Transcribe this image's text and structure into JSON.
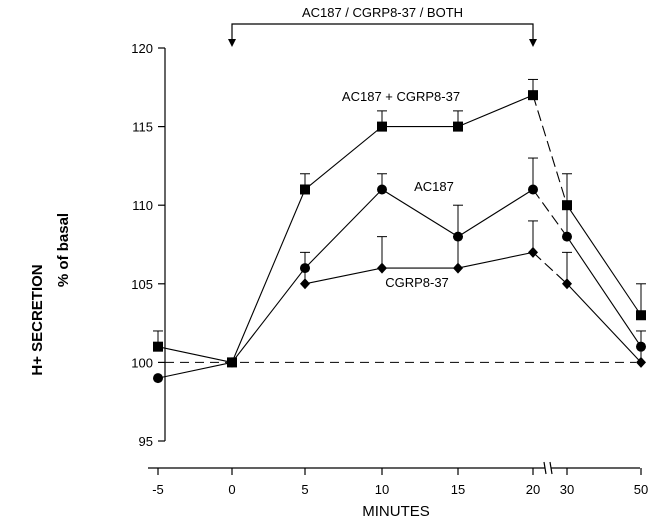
{
  "chart_data": {
    "type": "line",
    "xlabel": "MINUTES",
    "ylabel": "H+ SECRETION",
    "ylabel_sub": "% of basal",
    "x": [
      -5,
      0,
      5,
      10,
      15,
      20,
      30,
      50
    ],
    "x_tick_labels": [
      "-5",
      "0",
      "5",
      "10",
      "15",
      "20",
      "30",
      "50"
    ],
    "x_axis_break": "between 20 and 30",
    "ylim": [
      95,
      120
    ],
    "y_ticks": [
      95,
      100,
      105,
      110,
      115,
      120
    ],
    "y_tick_labels": [
      "95",
      "100",
      "105",
      "110",
      "115",
      "120"
    ],
    "baseline": 100,
    "treatment_bar": {
      "label": "AC187 / CGRP8-37 / BOTH",
      "start": 0,
      "end": 20
    },
    "series": [
      {
        "name": "AC187 + CGRP8-37",
        "marker": "square",
        "values": [
          101,
          100,
          111,
          115,
          115,
          117,
          110,
          103
        ],
        "error": [
          1,
          0,
          1,
          1,
          1,
          1,
          2,
          2
        ]
      },
      {
        "name": "AC187",
        "marker": "circle",
        "values": [
          99,
          100,
          106,
          111,
          108,
          111,
          108,
          101
        ],
        "error": [
          0,
          0,
          1,
          1,
          2,
          2,
          2,
          0
        ]
      },
      {
        "name": "CGRP8-37",
        "marker": "diamond",
        "values": [
          null,
          null,
          105,
          106,
          106,
          107,
          105,
          100
        ],
        "error": [
          0,
          0,
          1,
          2,
          2,
          2,
          2,
          2
        ]
      }
    ]
  }
}
